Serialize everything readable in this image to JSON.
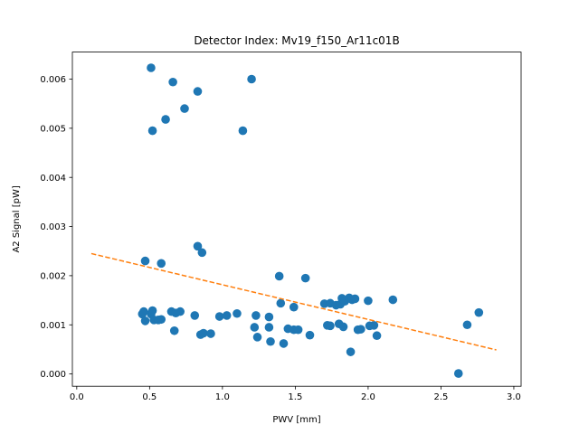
{
  "chart_data": {
    "type": "scatter",
    "title": "Detector Index: Mv19_f150_Ar11c01B",
    "xlabel": "PWV [mm]",
    "ylabel": "A2 Signal [pW]",
    "xlim": [
      -0.03,
      3.05
    ],
    "ylim": [
      -0.00025,
      0.00655
    ],
    "xticks": [
      0.0,
      0.5,
      1.0,
      1.5,
      2.0,
      2.5,
      3.0
    ],
    "xtick_labels": [
      "0.0",
      "0.5",
      "1.0",
      "1.5",
      "2.0",
      "2.5",
      "3.0"
    ],
    "yticks": [
      0.0,
      0.001,
      0.002,
      0.003,
      0.004,
      0.005,
      0.006
    ],
    "ytick_labels": [
      "0.000",
      "0.001",
      "0.002",
      "0.003",
      "0.004",
      "0.005",
      "0.006"
    ],
    "grid": false,
    "series": [
      {
        "name": "data",
        "style": "markers",
        "color": "#1f77b4",
        "points": [
          [
            0.51,
            0.00623
          ],
          [
            0.66,
            0.00594
          ],
          [
            0.83,
            0.00575
          ],
          [
            1.2,
            0.006
          ],
          [
            0.74,
            0.0054
          ],
          [
            0.61,
            0.00518
          ],
          [
            0.52,
            0.00495
          ],
          [
            1.14,
            0.00495
          ],
          [
            0.83,
            0.0026
          ],
          [
            0.86,
            0.00247
          ],
          [
            0.47,
            0.0023
          ],
          [
            0.58,
            0.00225
          ],
          [
            1.39,
            0.00199
          ],
          [
            1.57,
            0.00195
          ],
          [
            1.4,
            0.00144
          ],
          [
            2.17,
            0.00151
          ],
          [
            1.7,
            0.00143
          ],
          [
            1.74,
            0.00144
          ],
          [
            1.78,
            0.0014
          ],
          [
            1.81,
            0.00142
          ],
          [
            1.82,
            0.00154
          ],
          [
            1.84,
            0.00148
          ],
          [
            1.87,
            0.00155
          ],
          [
            1.89,
            0.00151
          ],
          [
            1.91,
            0.00153
          ],
          [
            2.0,
            0.00149
          ],
          [
            0.45,
            0.00122
          ],
          [
            0.46,
            0.00127
          ],
          [
            0.47,
            0.00108
          ],
          [
            0.51,
            0.00122
          ],
          [
            0.52,
            0.00129
          ],
          [
            0.53,
            0.0011
          ],
          [
            0.56,
            0.0011
          ],
          [
            0.58,
            0.00111
          ],
          [
            0.65,
            0.00127
          ],
          [
            0.68,
            0.00124
          ],
          [
            0.71,
            0.00127
          ],
          [
            0.67,
            0.00088
          ],
          [
            0.81,
            0.00119
          ],
          [
            0.85,
            0.0008
          ],
          [
            0.87,
            0.00083
          ],
          [
            0.92,
            0.00082
          ],
          [
            0.98,
            0.00117
          ],
          [
            1.03,
            0.00119
          ],
          [
            1.1,
            0.00123
          ],
          [
            1.22,
            0.00095
          ],
          [
            1.23,
            0.00119
          ],
          [
            1.24,
            0.00075
          ],
          [
            1.32,
            0.00116
          ],
          [
            1.32,
            0.00095
          ],
          [
            1.33,
            0.00066
          ],
          [
            1.42,
            0.00062
          ],
          [
            1.45,
            0.00092
          ],
          [
            1.49,
            0.0009
          ],
          [
            1.49,
            0.00136
          ],
          [
            1.52,
            0.0009
          ],
          [
            1.6,
            0.00079
          ],
          [
            1.72,
            0.00099
          ],
          [
            1.74,
            0.00098
          ],
          [
            1.8,
            0.00102
          ],
          [
            1.83,
            0.00096
          ],
          [
            1.88,
            0.00045
          ],
          [
            1.93,
            0.0009
          ],
          [
            1.95,
            0.00091
          ],
          [
            2.01,
            0.00098
          ],
          [
            2.04,
            0.00099
          ],
          [
            2.06,
            0.00078
          ],
          [
            2.62,
            1e-05
          ],
          [
            2.68,
            0.001
          ],
          [
            2.76,
            0.00125
          ]
        ]
      },
      {
        "name": "fit",
        "style": "dashed-line",
        "color": "#ff7f0e",
        "x": [
          0.1,
          2.88
        ],
        "y": [
          0.00245,
          0.00049
        ]
      }
    ]
  }
}
